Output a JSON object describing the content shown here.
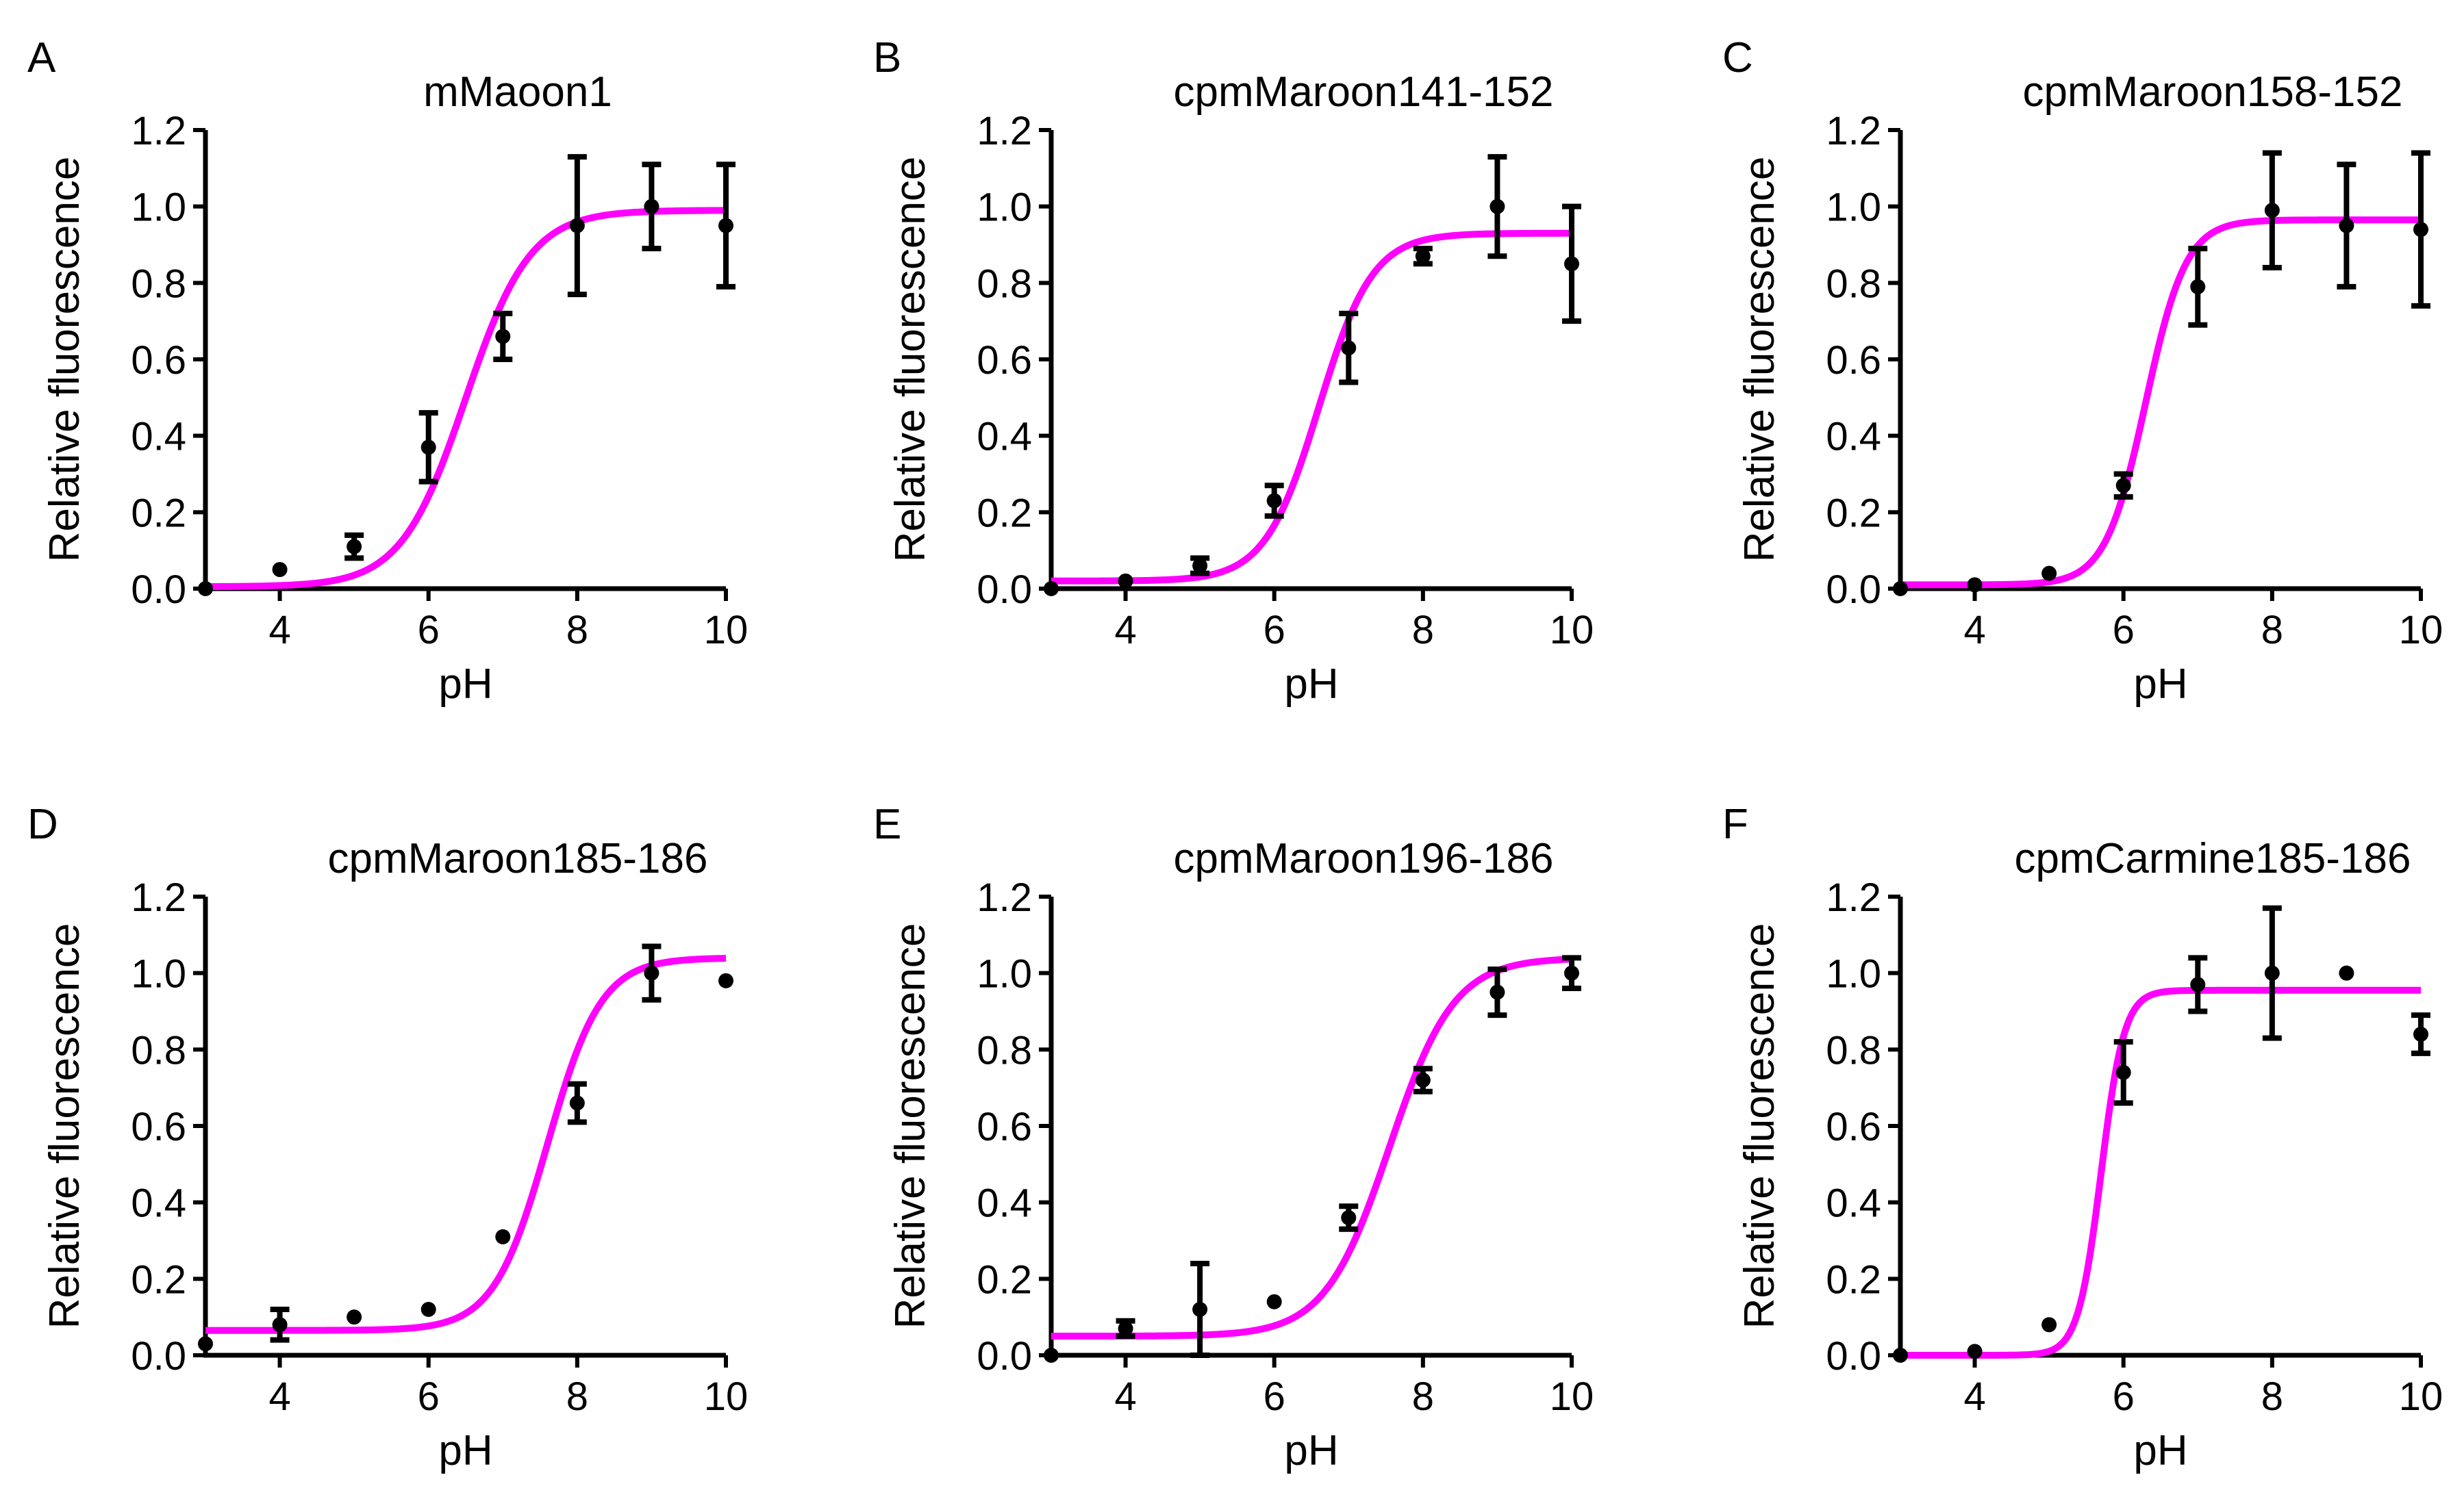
{
  "colors": {
    "fit_line": "#ff00ff",
    "points": "#000000",
    "axes": "#000000",
    "background": "#ffffff"
  },
  "chart_data": [
    {
      "panel": "A",
      "title": "mMaoon1",
      "type": "scatter",
      "xlabel": "pH",
      "ylabel": "Relative fluorescence",
      "xlim": [
        3,
        10
      ],
      "ylim": [
        0,
        1.2
      ],
      "xticks": [
        "4",
        "6",
        "8",
        "10"
      ],
      "yticks": [
        "0.0",
        "0.2",
        "0.4",
        "0.6",
        "0.8",
        "1.0",
        "1.2"
      ],
      "points": [
        {
          "x": 3,
          "y": 0.0,
          "err": 0.0
        },
        {
          "x": 4,
          "y": 0.05,
          "err": 0.0
        },
        {
          "x": 5,
          "y": 0.11,
          "err": 0.03
        },
        {
          "x": 6,
          "y": 0.37,
          "err": 0.09
        },
        {
          "x": 7,
          "y": 0.66,
          "err": 0.06
        },
        {
          "x": 8,
          "y": 0.95,
          "err": 0.18
        },
        {
          "x": 9,
          "y": 1.0,
          "err": 0.11
        },
        {
          "x": 10,
          "y": 0.95,
          "err": 0.16
        }
      ],
      "fit": {
        "bottom": 0.005,
        "top": 0.99,
        "pka": 6.5,
        "slope": 1.0
      }
    },
    {
      "panel": "B",
      "title": "cpmMaroon141-152",
      "type": "scatter",
      "xlabel": "pH",
      "ylabel": "Relative fluorescence",
      "xlim": [
        3,
        10
      ],
      "ylim": [
        0,
        1.2
      ],
      "xticks": [
        "4",
        "6",
        "8",
        "10"
      ],
      "yticks": [
        "0.0",
        "0.2",
        "0.4",
        "0.6",
        "0.8",
        "1.0",
        "1.2"
      ],
      "points": [
        {
          "x": 3,
          "y": 0.0,
          "err": 0.0
        },
        {
          "x": 4,
          "y": 0.02,
          "err": 0.0
        },
        {
          "x": 5,
          "y": 0.06,
          "err": 0.02
        },
        {
          "x": 6,
          "y": 0.23,
          "err": 0.04
        },
        {
          "x": 7,
          "y": 0.63,
          "err": 0.09
        },
        {
          "x": 8,
          "y": 0.87,
          "err": 0.02
        },
        {
          "x": 9,
          "y": 1.0,
          "err": 0.13
        },
        {
          "x": 10,
          "y": 0.85,
          "err": 0.15
        }
      ],
      "fit": {
        "bottom": 0.02,
        "top": 0.93,
        "pka": 6.6,
        "slope": 1.2
      }
    },
    {
      "panel": "C",
      "title": "cpmMaroon158-152",
      "type": "scatter",
      "xlabel": "pH",
      "ylabel": "Relative fluorescence",
      "xlim": [
        3,
        10
      ],
      "ylim": [
        0,
        1.2
      ],
      "xticks": [
        "4",
        "6",
        "8",
        "10"
      ],
      "yticks": [
        "0.0",
        "0.2",
        "0.4",
        "0.6",
        "0.8",
        "1.0",
        "1.2"
      ],
      "points": [
        {
          "x": 3,
          "y": 0.0,
          "err": 0.0
        },
        {
          "x": 4,
          "y": 0.01,
          "err": 0.0
        },
        {
          "x": 5,
          "y": 0.04,
          "err": 0.0
        },
        {
          "x": 6,
          "y": 0.27,
          "err": 0.03
        },
        {
          "x": 7,
          "y": 0.79,
          "err": 0.1
        },
        {
          "x": 8,
          "y": 0.99,
          "err": 0.15
        },
        {
          "x": 9,
          "y": 0.95,
          "err": 0.16
        },
        {
          "x": 10,
          "y": 0.94,
          "err": 0.2
        }
      ],
      "fit": {
        "bottom": 0.01,
        "top": 0.965,
        "pka": 6.3,
        "slope": 1.6
      }
    },
    {
      "panel": "D",
      "title": "cpmMaroon185-186",
      "type": "scatter",
      "xlabel": "pH",
      "ylabel": "Relative fluorescence",
      "xlim": [
        3,
        10
      ],
      "ylim": [
        0,
        1.2
      ],
      "xticks": [
        "4",
        "6",
        "8",
        "10"
      ],
      "yticks": [
        "0.0",
        "0.2",
        "0.4",
        "0.6",
        "0.8",
        "1.0",
        "1.2"
      ],
      "points": [
        {
          "x": 3,
          "y": 0.03,
          "err": 0.0
        },
        {
          "x": 4,
          "y": 0.08,
          "err": 0.04
        },
        {
          "x": 5,
          "y": 0.1,
          "err": 0.0
        },
        {
          "x": 6,
          "y": 0.12,
          "err": 0.0
        },
        {
          "x": 7,
          "y": 0.31,
          "err": 0.0
        },
        {
          "x": 8,
          "y": 0.66,
          "err": 0.05
        },
        {
          "x": 9,
          "y": 1.0,
          "err": 0.07
        },
        {
          "x": 10,
          "y": 0.98,
          "err": 0.0
        }
      ],
      "fit": {
        "bottom": 0.065,
        "top": 1.04,
        "pka": 7.6,
        "slope": 1.2
      }
    },
    {
      "panel": "E",
      "title": "cpmMaroon196-186",
      "type": "scatter",
      "xlabel": "pH",
      "ylabel": "Relative fluorescence",
      "xlim": [
        3,
        10
      ],
      "ylim": [
        0,
        1.2
      ],
      "xticks": [
        "4",
        "6",
        "8",
        "10"
      ],
      "yticks": [
        "0.0",
        "0.2",
        "0.4",
        "0.6",
        "0.8",
        "1.0",
        "1.2"
      ],
      "points": [
        {
          "x": 3,
          "y": 0.0,
          "err": 0.0
        },
        {
          "x": 4,
          "y": 0.07,
          "err": 0.02
        },
        {
          "x": 5,
          "y": 0.12,
          "err": 0.12
        },
        {
          "x": 6,
          "y": 0.14,
          "err": 0.0
        },
        {
          "x": 7,
          "y": 0.36,
          "err": 0.03
        },
        {
          "x": 8,
          "y": 0.72,
          "err": 0.03
        },
        {
          "x": 9,
          "y": 0.95,
          "err": 0.06
        },
        {
          "x": 10,
          "y": 1.0,
          "err": 0.04
        }
      ],
      "fit": {
        "bottom": 0.05,
        "top": 1.04,
        "pka": 7.55,
        "slope": 1.0
      }
    },
    {
      "panel": "F",
      "title": "cpmCarmine185-186",
      "type": "scatter",
      "xlabel": "pH",
      "ylabel": "Relative fluorescence",
      "xlim": [
        3,
        10
      ],
      "ylim": [
        0,
        1.2
      ],
      "xticks": [
        "4",
        "6",
        "8",
        "10"
      ],
      "yticks": [
        "0.0",
        "0.2",
        "0.4",
        "0.6",
        "0.8",
        "1.0",
        "1.2"
      ],
      "points": [
        {
          "x": 3,
          "y": 0.0,
          "err": 0.0
        },
        {
          "x": 4,
          "y": 0.01,
          "err": 0.0
        },
        {
          "x": 5,
          "y": 0.08,
          "err": 0.0
        },
        {
          "x": 6,
          "y": 0.74,
          "err": 0.08
        },
        {
          "x": 7,
          "y": 0.97,
          "err": 0.07
        },
        {
          "x": 8,
          "y": 1.0,
          "err": 0.17
        },
        {
          "x": 9,
          "y": 1.0,
          "err": 0.0
        },
        {
          "x": 10,
          "y": 0.84,
          "err": 0.05
        }
      ],
      "fit": {
        "bottom": 0.0,
        "top": 0.955,
        "pka": 5.7,
        "slope": 2.8
      }
    }
  ]
}
